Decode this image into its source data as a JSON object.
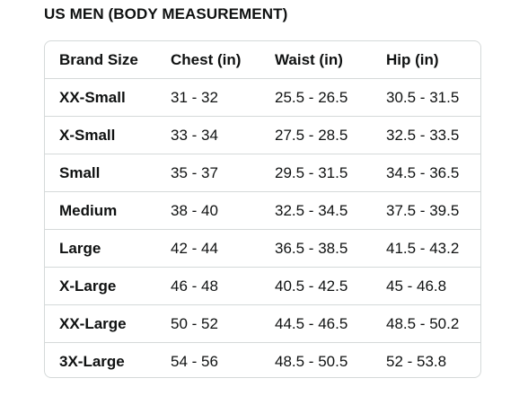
{
  "title": "US MEN (BODY MEASUREMENT)",
  "table": {
    "headers": [
      "Brand Size",
      "Chest (in)",
      "Waist (in)",
      "Hip (in)"
    ],
    "rows": [
      [
        "XX-Small",
        "31 - 32",
        "25.5 - 26.5",
        "30.5 - 31.5"
      ],
      [
        "X-Small",
        "33 - 34",
        "27.5 - 28.5",
        "32.5 - 33.5"
      ],
      [
        "Small",
        "35 - 37",
        "29.5 - 31.5",
        "34.5 - 36.5"
      ],
      [
        "Medium",
        "38 - 40",
        "32.5 - 34.5",
        "37.5 - 39.5"
      ],
      [
        "Large",
        "42 - 44",
        "36.5 - 38.5",
        "41.5 - 43.2"
      ],
      [
        "X-Large",
        "46 - 48",
        "40.5 - 42.5",
        "45 - 46.8"
      ],
      [
        "XX-Large",
        "50 - 52",
        "44.5 - 46.5",
        "48.5 - 50.2"
      ],
      [
        "3X-Large",
        "54 - 56",
        "48.5 - 50.5",
        "52 - 53.8"
      ]
    ]
  }
}
